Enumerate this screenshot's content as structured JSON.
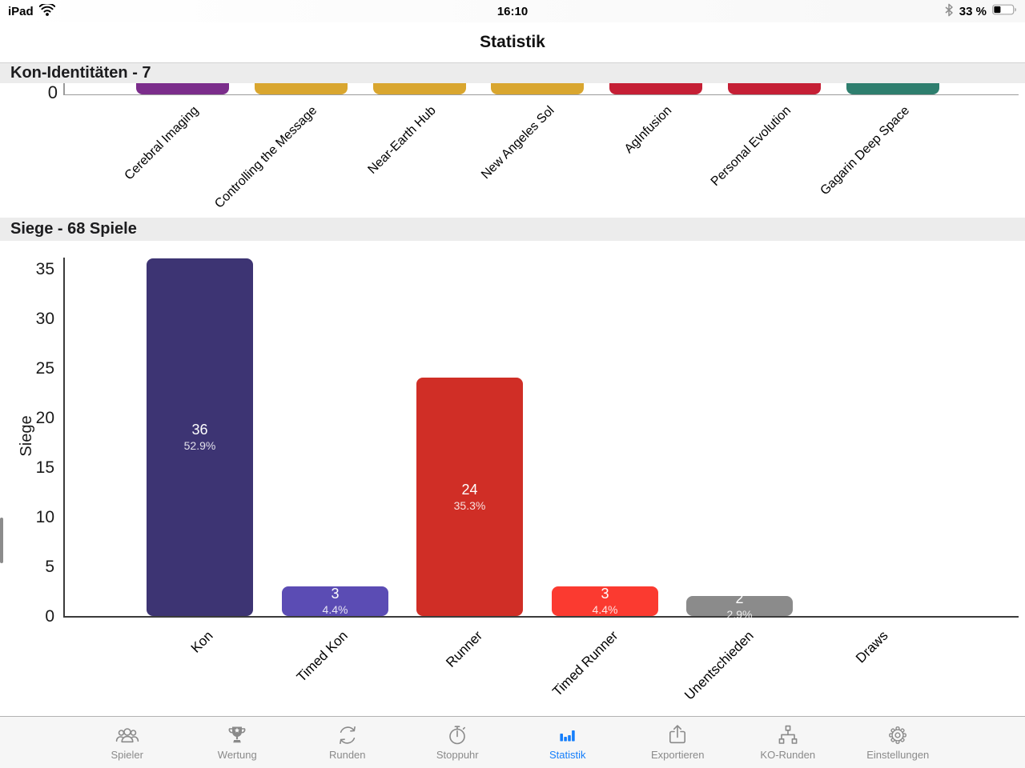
{
  "status_bar": {
    "device": "iPad",
    "time": "16:10",
    "battery_percent": "33 %"
  },
  "nav": {
    "title": "Statistik"
  },
  "identities_section": {
    "header": "Kon-Identitäten - 7",
    "axis_zero_label": "0",
    "bars": [
      {
        "label": "Cerebral Imaging",
        "color": "#7b2d8b"
      },
      {
        "label": "Controlling the Message",
        "color": "#d9a62f"
      },
      {
        "label": "Near-Earth Hub",
        "color": "#d9a62f"
      },
      {
        "label": "New Angeles Sol",
        "color": "#d9a62f"
      },
      {
        "label": "AgInfusion",
        "color": "#c51f35"
      },
      {
        "label": "Personal Evolution",
        "color": "#c51f35"
      },
      {
        "label": "Gagarin Deep Space",
        "color": "#2e7e6e"
      }
    ]
  },
  "wins_section": {
    "header": "Siege - 68 Spiele",
    "ylabel": "Siege",
    "yticks": [
      "35",
      "30",
      "25",
      "20",
      "15",
      "10",
      "5",
      "0"
    ],
    "bars": [
      {
        "label": "Kon",
        "value": 36,
        "value_label": "36",
        "percent": "52.9%",
        "color": "#3d3473"
      },
      {
        "label": "Timed Kon",
        "value": 3,
        "value_label": "3",
        "percent": "4.4%",
        "color": "#5b4cb4"
      },
      {
        "label": "Runner",
        "value": 24,
        "value_label": "24",
        "percent": "35.3%",
        "color": "#d02e26"
      },
      {
        "label": "Timed Runner",
        "value": 3,
        "value_label": "3",
        "percent": "4.4%",
        "color": "#fb3a30"
      },
      {
        "label": "Unentschieden",
        "value": 2,
        "value_label": "2",
        "percent": "2.9%",
        "color": "#8b8b8b"
      },
      {
        "label": "Draws",
        "value": 0,
        "value_label": "",
        "percent": "",
        "color": "#8b8b8b"
      }
    ]
  },
  "tab_bar": {
    "active_color": "#147efb",
    "inactive_color": "#8a8a8a",
    "items": [
      {
        "label": "Spieler",
        "icon": "people-icon",
        "active": false
      },
      {
        "label": "Wertung",
        "icon": "trophy-icon",
        "active": false
      },
      {
        "label": "Runden",
        "icon": "refresh-icon",
        "active": false
      },
      {
        "label": "Stoppuhr",
        "icon": "stopwatch-icon",
        "active": false
      },
      {
        "label": "Statistik",
        "icon": "bar-chart-icon",
        "active": true
      },
      {
        "label": "Exportieren",
        "icon": "share-icon",
        "active": false
      },
      {
        "label": "KO-Runden",
        "icon": "bracket-icon",
        "active": false
      },
      {
        "label": "Einstellungen",
        "icon": "gear-icon",
        "active": false
      }
    ]
  },
  "chart_data": [
    {
      "type": "bar",
      "title": "Kon-Identitäten - 7",
      "categories": [
        "Cerebral Imaging",
        "Controlling the Message",
        "Near-Earth Hub",
        "New Angeles Sol",
        "AgInfusion",
        "Personal Evolution",
        "Gagarin Deep Space"
      ],
      "bar_colors": [
        "#7b2d8b",
        "#d9a62f",
        "#d9a62f",
        "#d9a62f",
        "#c51f35",
        "#c51f35",
        "#2e7e6e"
      ],
      "layout": "bars clipped at top by scrolled view; only x-axis, 0 tick and bar bottoms visible"
    },
    {
      "type": "bar",
      "title": "Siege - 68 Spiele",
      "categories": [
        "Kon",
        "Timed Kon",
        "Runner",
        "Timed Runner",
        "Unentschieden",
        "Draws"
      ],
      "values": [
        36,
        3,
        24,
        3,
        2,
        0
      ],
      "data_labels": [
        "36 (52.9%)",
        "3 (4.4%)",
        "24 (35.3%)",
        "3 (4.4%)",
        "2 (2.9%)",
        ""
      ],
      "xlabel": "",
      "ylabel": "Siege",
      "ylim": [
        0,
        36
      ],
      "yticks": [
        0,
        5,
        10,
        15,
        20,
        25,
        30,
        35
      ],
      "bar_colors": [
        "#3d3473",
        "#5b4cb4",
        "#d02e26",
        "#fb3a30",
        "#8b8b8b",
        "#8b8b8b"
      ],
      "grid": false,
      "legend": false
    }
  ]
}
